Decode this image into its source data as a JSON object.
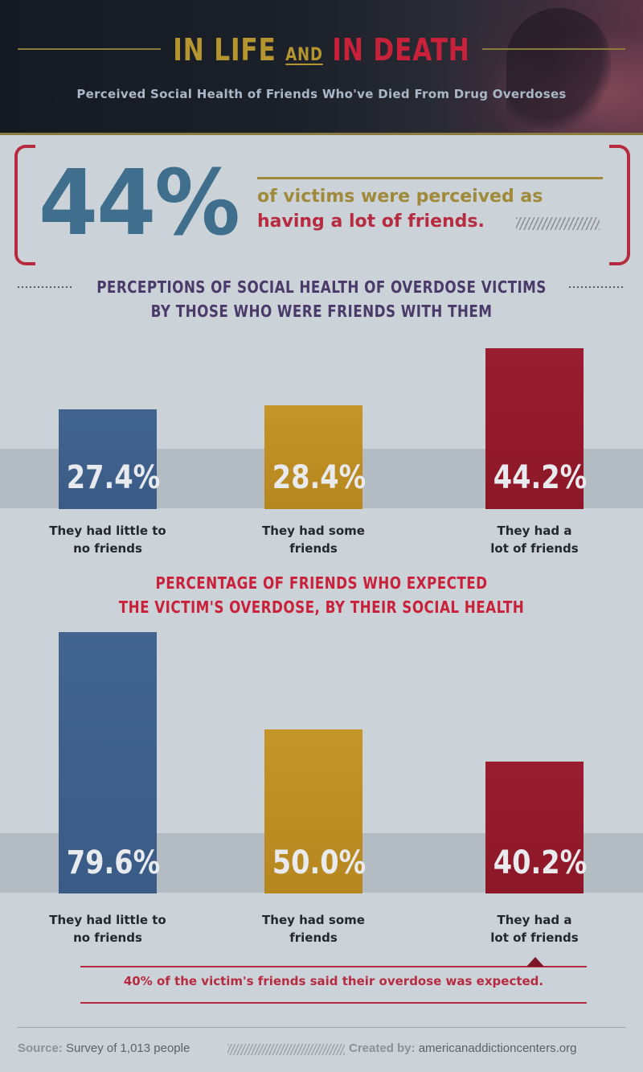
{
  "header": {
    "title_part1": "IN LIFE",
    "title_and": "AND",
    "title_part2": "IN DEATH",
    "subtitle": "Perceived Social Health of Friends Who've Died From Drug Overdoses"
  },
  "highlight": {
    "big_number": "44%",
    "line1": "of victims were perceived as",
    "line2": "having a lot of friends."
  },
  "colors": {
    "blue": "#3a5b86",
    "gold": "#b5871f",
    "red": "#8c1727",
    "heading_purple": "#4a3a6a",
    "heading_red": "#c9213a"
  },
  "chart_data": [
    {
      "type": "bar",
      "title_lines": [
        "PERCEPTIONS OF SOCIAL HEALTH OF OVERDOSE VICTIMS",
        "BY THOSE WHO WERE FRIENDS WITH THEM"
      ],
      "categories": [
        [
          "They had little to",
          "no friends"
        ],
        [
          "They had some",
          "friends"
        ],
        [
          "They had a",
          "lot of friends"
        ]
      ],
      "values": [
        27.4,
        28.4,
        44.2
      ],
      "labels": [
        "27.4%",
        "28.4%",
        "44.2%"
      ],
      "bar_colors": [
        "#3a5b86",
        "#b5871f",
        "#8c1727"
      ]
    },
    {
      "type": "bar",
      "title_lines": [
        "PERCENTAGE OF FRIENDS WHO EXPECTED",
        "THE VICTIM'S OVERDOSE, BY THEIR SOCIAL HEALTH"
      ],
      "categories": [
        [
          "They had little to",
          "no friends"
        ],
        [
          "They had some",
          "friends"
        ],
        [
          "They had a",
          "lot of friends"
        ]
      ],
      "values": [
        79.6,
        50.0,
        40.2
      ],
      "labels": [
        "79.6%",
        "50.0%",
        "40.2%"
      ],
      "bar_colors": [
        "#3a5b86",
        "#b5871f",
        "#8c1727"
      ]
    }
  ],
  "note": "40% of the victim's friends said their overdose was expected.",
  "footer": {
    "source_label": "Source:",
    "source_text": "Survey of 1,013 people",
    "created_label": "Created by:",
    "created_text": "americanaddictioncenters.org"
  }
}
